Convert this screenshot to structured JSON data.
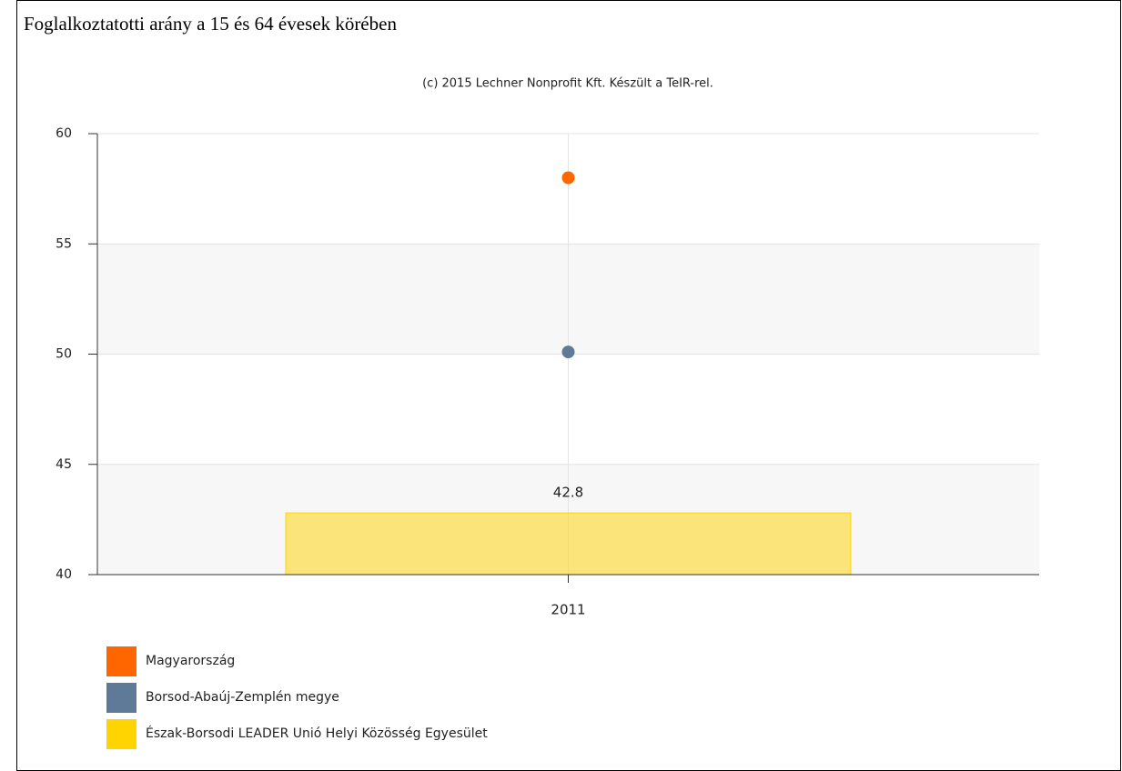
{
  "chart_data": {
    "type": "combo",
    "title": "Foglalkoztatotti arány a 15 és 64 évesek körében",
    "subtitle": "(c) 2015 Lechner Nonprofit Kft. Készült a TeIR-rel.",
    "categories": [
      "2011"
    ],
    "series": [
      {
        "name": "Magyarország",
        "type": "scatter",
        "color": "#ff6600",
        "values": [
          58.0
        ]
      },
      {
        "name": "Borsod-Abaúj-Zemplén megye",
        "type": "scatter",
        "color": "#5f7a99",
        "values": [
          50.1
        ]
      },
      {
        "name": "Észak-Borsodi LEADER Unió Helyi Közösség Egyesület",
        "type": "bar",
        "color": "#ffd400",
        "values": [
          42.8
        ]
      }
    ],
    "ylim": [
      40,
      60
    ],
    "yticks": [
      40,
      45,
      50,
      55,
      60
    ],
    "grid": true,
    "legend": "bottom-left"
  }
}
